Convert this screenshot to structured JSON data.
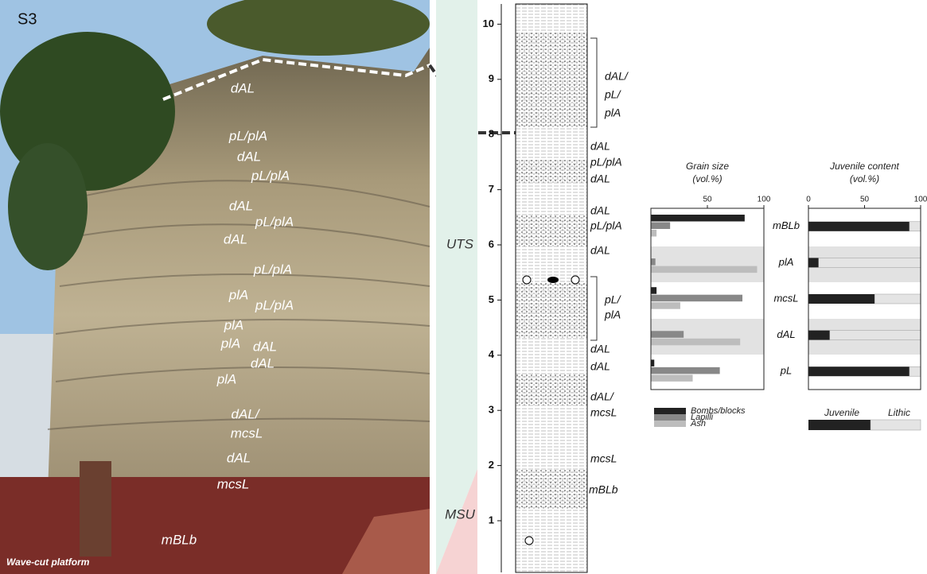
{
  "figure_label": "S3",
  "photo_labels": [
    "dAL",
    "pL/plA",
    "dAL",
    "pL/plA",
    "dAL",
    "pL/plA",
    "dAL",
    "pL/plA",
    "plA",
    "pL/plA",
    "plA",
    "plA",
    "dAL",
    "dAL",
    "plA",
    "dAL/",
    "mcsL",
    "dAL",
    "mcsL",
    "mBLb"
  ],
  "photo_caption": "Wave-cut platform",
  "units": [
    "UTS",
    "MSU"
  ],
  "scale_ticks": [
    1,
    2,
    3,
    4,
    5,
    6,
    7,
    8,
    9,
    10
  ],
  "log_labels": [
    "dAL/",
    "pL/",
    "plA",
    "dAL",
    "pL/plA",
    "dAL",
    "dAL",
    "pL/plA",
    "dAL",
    "pL/",
    "plA",
    "dAL",
    "dAL",
    "dAL/",
    "mcsL",
    "mcsL",
    "mBLb"
  ],
  "chart_data": [
    {
      "type": "bar",
      "title": "Grain size",
      "unit": "(vol.%)",
      "categories": [
        "mBLb",
        "plA",
        "mcsL",
        "dAL",
        "pL"
      ],
      "xlim": [
        0,
        100
      ],
      "xticks": [
        50,
        100
      ],
      "series": [
        {
          "name": "Bombs/blocks",
          "color": "#222222",
          "values": [
            83,
            0,
            5,
            0,
            3
          ]
        },
        {
          "name": "Lapilli",
          "color": "#888888",
          "values": [
            17,
            4,
            81,
            29,
            61
          ]
        },
        {
          "name": "Ash",
          "color": "#bdbdbd",
          "values": [
            5,
            94,
            26,
            79,
            37
          ]
        }
      ]
    },
    {
      "type": "stacked-bar",
      "title": "Juvenile content",
      "unit": "(vol.%)",
      "xlim": [
        0,
        100
      ],
      "xticks": [
        0,
        50,
        100
      ],
      "series": [
        {
          "name": "Juvenile",
          "color": "#222222",
          "values": [
            90,
            9,
            59,
            19,
            90
          ]
        },
        {
          "name": "Lithic",
          "color": "#e4e4e4",
          "values": [
            10,
            91,
            41,
            81,
            10
          ]
        }
      ]
    }
  ]
}
